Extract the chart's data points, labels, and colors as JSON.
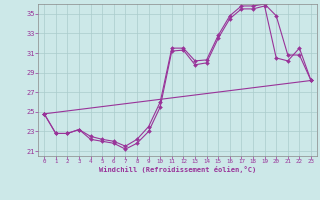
{
  "xlabel": "Windchill (Refroidissement éolien,°C)",
  "bg_color": "#cce8e8",
  "grid_color": "#aacccc",
  "line_color": "#993399",
  "xlim": [
    -0.5,
    23.5
  ],
  "ylim": [
    20.5,
    36.0
  ],
  "yticks": [
    21,
    23,
    25,
    27,
    29,
    31,
    33,
    35
  ],
  "xticks": [
    0,
    1,
    2,
    3,
    4,
    5,
    6,
    7,
    8,
    9,
    10,
    11,
    12,
    13,
    14,
    15,
    16,
    17,
    18,
    19,
    20,
    21,
    22,
    23
  ],
  "line1_x": [
    0,
    1,
    2,
    3,
    4,
    5,
    6,
    7,
    8,
    9,
    10,
    11,
    12,
    13,
    14,
    15,
    16,
    17,
    18,
    19,
    20,
    21,
    22,
    23
  ],
  "line1_y": [
    24.8,
    22.8,
    22.8,
    23.2,
    22.2,
    22.0,
    21.8,
    21.2,
    21.8,
    23.0,
    25.5,
    31.2,
    31.3,
    29.8,
    30.0,
    32.5,
    34.5,
    35.5,
    35.5,
    35.8,
    30.5,
    30.2,
    31.5,
    28.2
  ],
  "line2_x": [
    0,
    1,
    2,
    3,
    4,
    5,
    6,
    7,
    8,
    9,
    10,
    11,
    12,
    13,
    14,
    15,
    16,
    17,
    18,
    19,
    20,
    21,
    22,
    23
  ],
  "line2_y": [
    24.8,
    22.8,
    22.8,
    23.2,
    22.5,
    22.2,
    22.0,
    21.5,
    22.2,
    23.5,
    26.0,
    31.5,
    31.5,
    30.2,
    30.3,
    32.8,
    34.8,
    35.8,
    35.8,
    36.0,
    34.8,
    30.8,
    30.8,
    28.2
  ],
  "line3_x": [
    0,
    23
  ],
  "line3_y": [
    24.8,
    28.2
  ]
}
